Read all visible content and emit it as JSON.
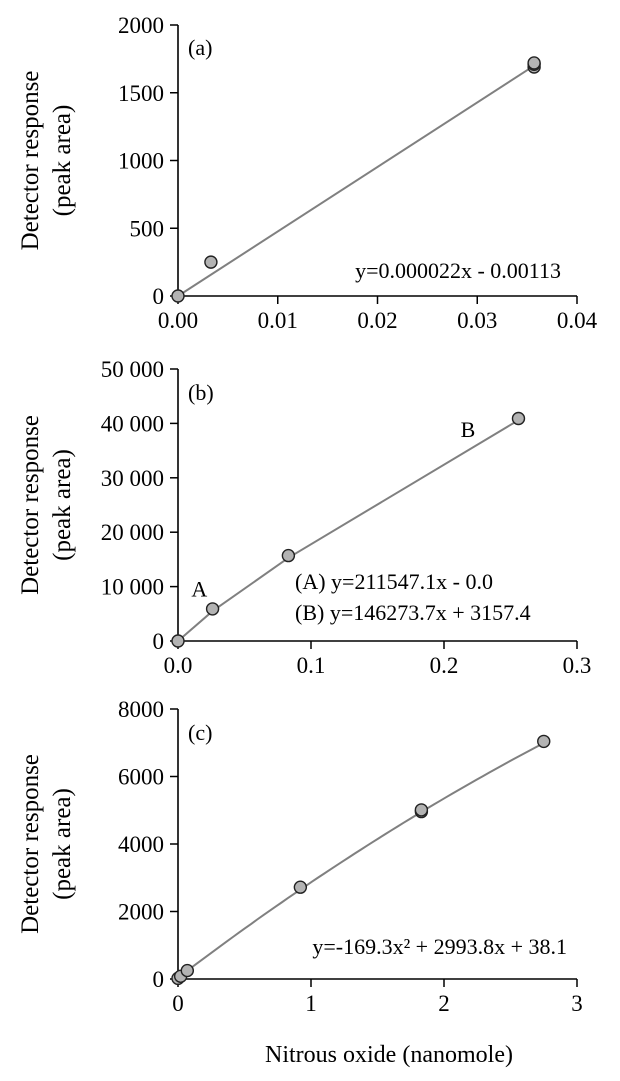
{
  "chart_data": [
    {
      "type": "scatter",
      "panel_label": "(a)",
      "ylabel_line1": "Detector response",
      "ylabel_line2": "(peak area)",
      "xlabel": "",
      "xlim": [
        0,
        0.04
      ],
      "ylim": [
        0,
        2000
      ],
      "x_ticks": [
        0,
        0.01,
        0.02,
        0.03,
        0.04
      ],
      "x_tick_labels": [
        "0.00",
        "0.01",
        "0.02",
        "0.03",
        "0.04"
      ],
      "y_ticks": [
        0,
        500,
        1000,
        1500,
        2000
      ],
      "y_tick_labels": [
        "0",
        "500",
        "1000",
        "1500",
        "2000"
      ],
      "points": [
        {
          "x": 0.0,
          "y": 0
        },
        {
          "x": 0.0033,
          "y": 250
        },
        {
          "x": 0.0357,
          "y": 1690
        },
        {
          "x": 0.0357,
          "y": 1710
        },
        {
          "x": 0.0357,
          "y": 1720
        }
      ],
      "fit": {
        "kind": "linear",
        "x_range": [
          0.0,
          0.0357
        ],
        "y_range": [
          0,
          1700
        ]
      },
      "equations": [
        "y=0.000022x - 0.00113"
      ],
      "markers": [],
      "grid": false
    },
    {
      "type": "scatter",
      "panel_label": "(b)",
      "ylabel_line1": "Detector response",
      "ylabel_line2": "(peak area)",
      "xlabel": "",
      "xlim": [
        0,
        0.3
      ],
      "ylim": [
        0,
        50000
      ],
      "x_ticks": [
        0,
        0.1,
        0.2,
        0.3
      ],
      "x_tick_labels": [
        "0.0",
        "0.1",
        "0.2",
        "0.3"
      ],
      "y_ticks": [
        0,
        10000,
        20000,
        30000,
        40000,
        50000
      ],
      "y_tick_labels": [
        "0",
        "10 000",
        "20 000",
        "30 000",
        "40 000",
        "50 000"
      ],
      "points": [
        {
          "x": 0.0,
          "y": 0
        },
        {
          "x": 0.026,
          "y": 5900
        },
        {
          "x": 0.083,
          "y": 15700
        },
        {
          "x": 0.256,
          "y": 40900
        }
      ],
      "fit": {
        "kind": "piecewise",
        "points": [
          [
            0.0,
            0
          ],
          [
            0.026,
            5500
          ],
          [
            0.083,
            15300
          ],
          [
            0.256,
            40600
          ]
        ]
      },
      "equations": [
        "(A) y=211547.1x - 0.0",
        "(B) y=146273.7x + 3157.4"
      ],
      "markers": [
        {
          "text": "A",
          "x": 0.016,
          "y": 8200
        },
        {
          "text": "B",
          "x": 0.218,
          "y": 37500
        }
      ],
      "grid": false
    },
    {
      "type": "scatter",
      "panel_label": "(c)",
      "ylabel_line1": "Detector response",
      "ylabel_line2": "(peak area)",
      "xlabel": "Nitrous oxide (nanomole)",
      "xlim": [
        0,
        3
      ],
      "ylim": [
        0,
        8000
      ],
      "x_ticks": [
        0,
        1,
        2,
        3
      ],
      "x_tick_labels": [
        "0",
        "1",
        "2",
        "3"
      ],
      "y_ticks": [
        0,
        2000,
        4000,
        6000,
        8000
      ],
      "y_tick_labels": [
        "0",
        "2000",
        "4000",
        "6000",
        "8000"
      ],
      "points": [
        {
          "x": 0.0,
          "y": 20
        },
        {
          "x": 0.02,
          "y": 80
        },
        {
          "x": 0.07,
          "y": 250
        },
        {
          "x": 0.92,
          "y": 2720
        },
        {
          "x": 1.83,
          "y": 4960
        },
        {
          "x": 1.83,
          "y": 5010
        },
        {
          "x": 2.75,
          "y": 7040
        }
      ],
      "fit": {
        "kind": "quadratic",
        "coef": [
          -169.3,
          2993.8,
          38.1
        ],
        "x_range": [
          0.0,
          2.75
        ]
      },
      "equations": [
        "y=-169.3x² + 2993.8x + 38.1"
      ],
      "markers": [],
      "grid": false
    }
  ],
  "colors": {
    "marker_fill": "#b3b3b3",
    "marker_stroke": "#222222",
    "fit_line": "#808080",
    "axis": "#000000"
  }
}
